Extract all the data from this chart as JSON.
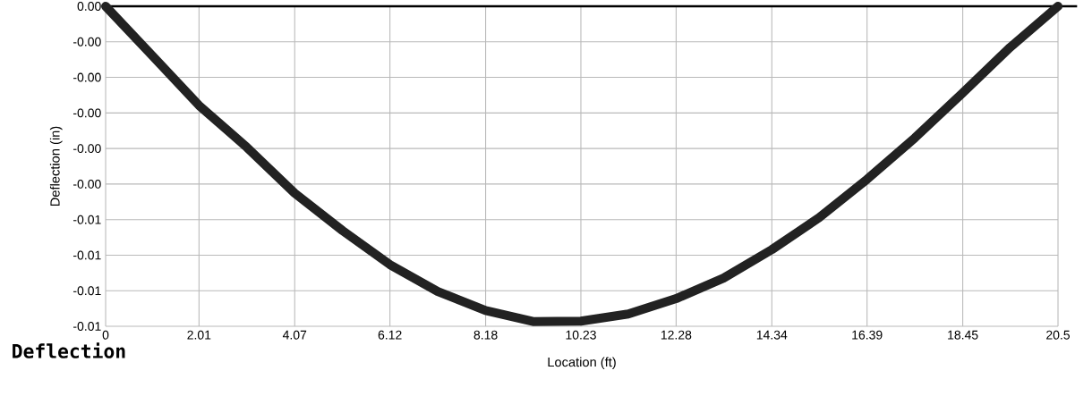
{
  "chart_data": {
    "type": "line",
    "xlabel": "Location (ft)",
    "ylabel": "Deflection (in)",
    "annotations": [
      "Deflection"
    ],
    "x": [
      0,
      1.02,
      2.01,
      3.04,
      4.07,
      5.1,
      6.12,
      7.15,
      8.18,
      9.2,
      10.23,
      11.25,
      12.28,
      13.3,
      14.34,
      15.36,
      16.39,
      17.42,
      18.45,
      19.47,
      20.5
    ],
    "series": [
      {
        "color": "#222222",
        "line_style": "solid",
        "values": [
          0,
          -0.00127,
          -0.00251,
          -0.00357,
          -0.00473,
          -0.00568,
          -0.00654,
          -0.00722,
          -0.0077,
          -0.00798,
          -0.00797,
          -0.00779,
          -0.0074,
          -0.00688,
          -0.00616,
          -0.00535,
          -0.00438,
          -0.00333,
          -0.00219,
          -0.00104,
          0
        ]
      }
    ],
    "xlim": [
      0,
      20.5
    ],
    "ylim": [
      -0.0081,
      0
    ],
    "xticks": [
      0,
      2.01,
      4.07,
      6.12,
      8.18,
      10.23,
      12.28,
      14.34,
      16.39,
      18.45,
      20.5
    ],
    "yticks": [
      {
        "value": 0,
        "label": "0.00"
      },
      {
        "value": -0.0009,
        "label": "-0.00"
      },
      {
        "value": -0.0018,
        "label": "-0.00"
      },
      {
        "value": -0.0027,
        "label": "-0.00"
      },
      {
        "value": -0.0036,
        "label": "-0.00"
      },
      {
        "value": -0.0045,
        "label": "-0.00"
      },
      {
        "value": -0.0054,
        "label": "-0.01"
      },
      {
        "value": -0.0063,
        "label": "-0.01"
      },
      {
        "value": -0.0072,
        "label": "-0.01"
      },
      {
        "value": -0.0081,
        "label": "-0.01"
      }
    ],
    "grid": true,
    "ref_lines": [
      {
        "axis": "y",
        "value": 0,
        "color": "#000000"
      }
    ]
  }
}
